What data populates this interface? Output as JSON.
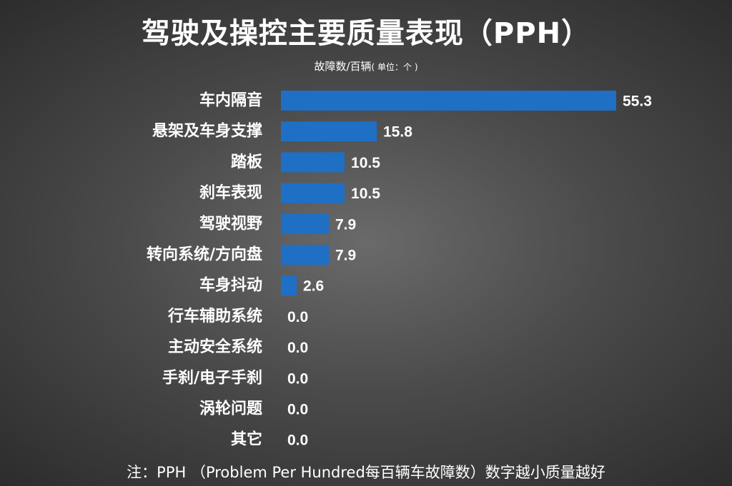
{
  "title": "驾驶及操控主要质量表现（PPH）",
  "subtitle": "故障数/百辆",
  "unit_note": "( 单位：个 )",
  "footnote": "注：PPH （Problem Per Hundred每百辆车故障数）数字越小质量越好",
  "colors": {
    "bar": "#1f6fc5",
    "text": "#ffffff",
    "background": "#4a4a4a"
  },
  "chart_data": {
    "type": "bar",
    "orientation": "horizontal",
    "title": "驾驶及操控主要质量表现（PPH）",
    "subtitle": "故障数/百辆",
    "categories": [
      "车内隔音",
      "悬架及车身支撑",
      "踏板",
      "刹车表现",
      "驾驶视野",
      "转向系统/方向盘",
      "车身抖动",
      "行车辅助系统",
      "主动安全系统",
      "手刹/电子手刹",
      "涡轮问题",
      "其它"
    ],
    "values": [
      55.3,
      15.8,
      10.5,
      10.5,
      7.9,
      7.9,
      2.6,
      0.0,
      0.0,
      0.0,
      0.0,
      0.0
    ],
    "value_labels": [
      "55.3",
      "15.8",
      "10.5",
      "10.5",
      "7.9",
      "7.9",
      "2.6",
      "0.0",
      "0.0",
      "0.0",
      "0.0",
      "0.0"
    ],
    "xlim": [
      0,
      55.3
    ],
    "grid": false,
    "legend": "none"
  }
}
